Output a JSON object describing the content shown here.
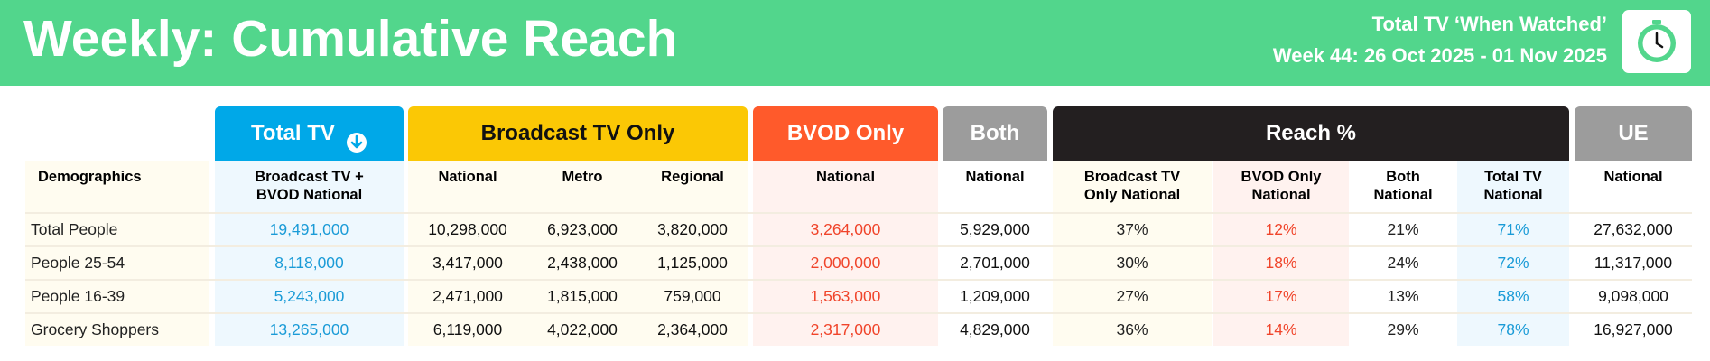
{
  "header": {
    "title": "Weekly: Cumulative Reach",
    "subtitle_line1": "Total TV ‘When Watched’",
    "subtitle_line2": "Week 44: 26 Oct 2025 - 01 Nov 2025",
    "icon": "clock-icon"
  },
  "colors": {
    "banner": "#52d68c",
    "total_tv": "#00a8e8",
    "broadcast": "#fbc805",
    "bvod": "#ff5a2b",
    "both": "#9c9c9c",
    "reach": "#231f20",
    "ue": "#9c9c9c"
  },
  "groups": {
    "total_tv": "Total TV",
    "broadcast": "Broadcast TV Only",
    "bvod": "BVOD Only",
    "both": "Both",
    "reach": "Reach %",
    "ue": "UE"
  },
  "columns": {
    "demographics": "Demographics",
    "total_tv_national_l1": "Broadcast TV +",
    "total_tv_national_l2": "BVOD National",
    "bc_national": "National",
    "bc_metro": "Metro",
    "bc_regional": "Regional",
    "bvod_national": "National",
    "both_national": "National",
    "reach_bc_l1": "Broadcast TV",
    "reach_bc_l2": "Only National",
    "reach_bvod_l1": "BVOD Only",
    "reach_bvod_l2": "National",
    "reach_both_l1": "Both",
    "reach_both_l2": "National",
    "reach_total_l1": "Total TV",
    "reach_total_l2": "National",
    "ue_national": "National"
  },
  "rows": [
    {
      "demo": "Total People",
      "total": "19,491,000",
      "bc_nat": "10,298,000",
      "bc_metro": "6,923,000",
      "bc_reg": "3,820,000",
      "bvod": "3,264,000",
      "both": "5,929,000",
      "r_bc": "37%",
      "r_bvod": "12%",
      "r_both": "21%",
      "r_total": "71%",
      "ue": "27,632,000"
    },
    {
      "demo": "People 25-54",
      "total": "8,118,000",
      "bc_nat": "3,417,000",
      "bc_metro": "2,438,000",
      "bc_reg": "1,125,000",
      "bvod": "2,000,000",
      "both": "2,701,000",
      "r_bc": "30%",
      "r_bvod": "18%",
      "r_both": "24%",
      "r_total": "72%",
      "ue": "11,317,000"
    },
    {
      "demo": "People 16-39",
      "total": "5,243,000",
      "bc_nat": "2,471,000",
      "bc_metro": "1,815,000",
      "bc_reg": "759,000",
      "bvod": "1,563,000",
      "both": "1,209,000",
      "r_bc": "27%",
      "r_bvod": "17%",
      "r_both": "13%",
      "r_total": "58%",
      "ue": "9,098,000"
    },
    {
      "demo": "Grocery Shoppers",
      "total": "13,265,000",
      "bc_nat": "6,119,000",
      "bc_metro": "4,022,000",
      "bc_reg": "2,364,000",
      "bvod": "2,317,000",
      "both": "4,829,000",
      "r_bc": "36%",
      "r_bvod": "14%",
      "r_both": "29%",
      "r_total": "78%",
      "ue": "16,927,000"
    }
  ]
}
